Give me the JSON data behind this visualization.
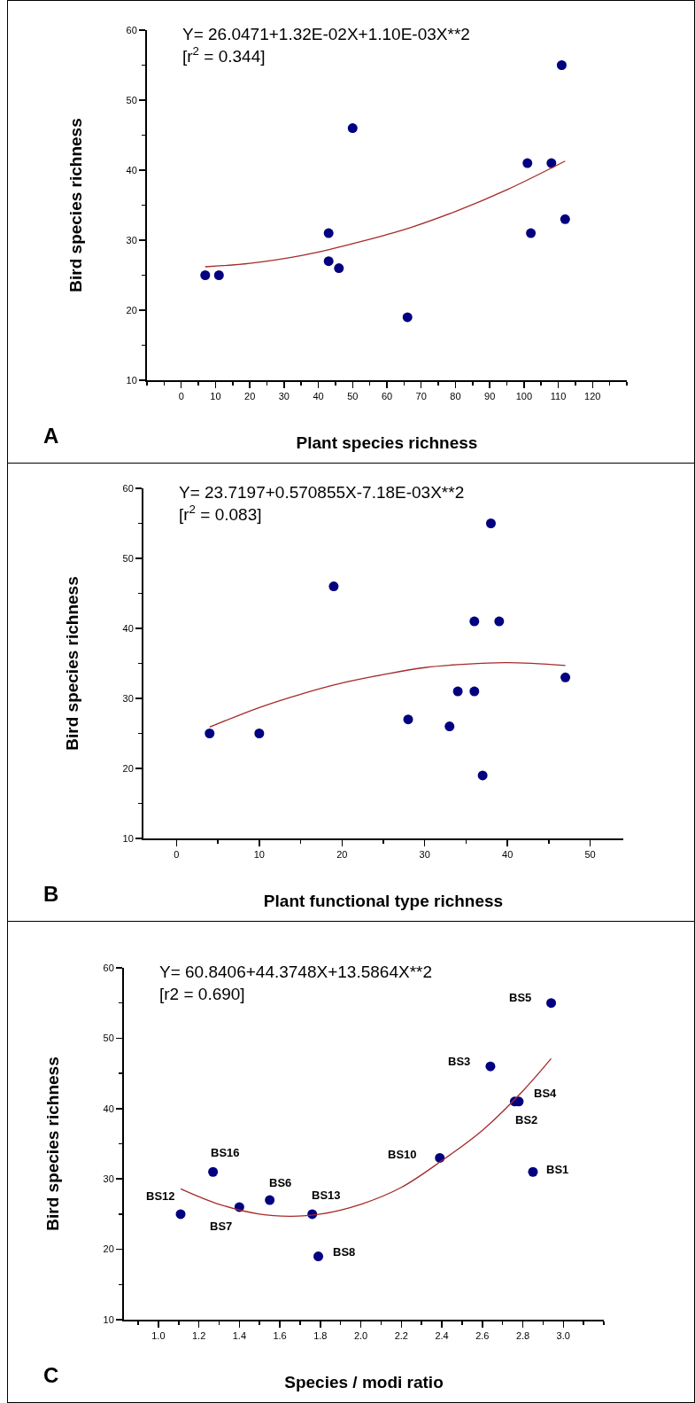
{
  "chart_data": [
    {
      "type": "scatter",
      "title": "A",
      "xlabel": "Plant species richness",
      "ylabel": "Bird species richness",
      "xlim": [
        -10,
        130
      ],
      "xticks": [
        0,
        10,
        20,
        30,
        40,
        50,
        60,
        70,
        80,
        90,
        100,
        110,
        120
      ],
      "ylim": [
        10,
        60
      ],
      "yticks": [
        10,
        20,
        30,
        40,
        50,
        60
      ],
      "annotations": [
        "Y= 26.0471+1.32E-02X+1.10E-03X**2\n[r$^{2}$ = 0.344]"
      ],
      "series": [
        {
          "marker": "circle",
          "color": "#000080",
          "x": [
            7,
            11,
            43,
            43,
            46,
            50,
            66,
            101,
            108,
            102,
            111,
            112
          ],
          "values": [
            25,
            25,
            31,
            27,
            26,
            46,
            19,
            41,
            41,
            31,
            55,
            33
          ]
        },
        {
          "type": "line",
          "marker": "none",
          "color": "#a52a2a",
          "x": [
            7,
            20,
            35,
            50,
            65,
            80,
            95,
            112
          ],
          "values": [
            26.2,
            26.7,
            27.8,
            29.5,
            31.5,
            34.1,
            37.2,
            41.3
          ]
        }
      ]
    },
    {
      "type": "scatter",
      "title": "B",
      "xlabel": "Plant functional type richness",
      "ylabel": "Bird species richness",
      "xlim": [
        -4,
        54
      ],
      "xticks": [
        0,
        10,
        20,
        30,
        40,
        50
      ],
      "ylim": [
        10,
        60
      ],
      "yticks": [
        10,
        20,
        30,
        40,
        50,
        60
      ],
      "annotations": [
        "Y= 23.7197+0.570855X-7.18E-03X**2\n[r$^{2}$ = 0.083]"
      ],
      "series": [
        {
          "marker": "circle",
          "color": "#000080",
          "x": [
            4,
            10,
            19,
            28,
            33,
            34,
            36,
            36,
            38,
            39,
            37,
            47
          ],
          "values": [
            25,
            25,
            46,
            27,
            26,
            31,
            31,
            41,
            55,
            41,
            19,
            33
          ]
        },
        {
          "type": "line",
          "marker": "none",
          "color": "#a52a2a",
          "x": [
            4,
            10,
            15,
            20,
            25,
            30,
            35,
            40,
            47
          ],
          "values": [
            25.9,
            28.7,
            30.6,
            32.2,
            33.4,
            34.4,
            34.9,
            35.1,
            34.7
          ]
        }
      ]
    },
    {
      "type": "scatter",
      "title": "C",
      "xlabel": "Species / modi ratio",
      "ylabel": "Bird species richness",
      "xlim": [
        0.83,
        3.2
      ],
      "xticks": [
        {
          "value": 1,
          "label": "1.0"
        },
        1.2,
        1.4,
        1.6,
        1.8,
        {
          "value": 2,
          "label": "2.0"
        },
        2.2,
        2.4,
        2.6,
        2.8,
        {
          "value": 3,
          "label": "3.0"
        }
      ],
      "ylim": [
        10,
        60
      ],
      "yticks": [
        10,
        20,
        30,
        40,
        50,
        60
      ],
      "annotations": [
        "Y= 60.8406+44.3748X+13.5864X**2\n[r2 = 0.690]",
        {
          "text": "BS12",
          "x": 1.11,
          "y": 25
        },
        {
          "text": "BS16",
          "x": 1.27,
          "y": 31
        },
        {
          "text": "BS7",
          "x": 1.4,
          "y": 26
        },
        {
          "text": "BS6",
          "x": 1.55,
          "y": 27
        },
        {
          "text": "BS13",
          "x": 1.76,
          "y": 25
        },
        {
          "text": "BS8",
          "x": 1.79,
          "y": 19
        },
        {
          "text": "BS10",
          "x": 2.39,
          "y": 33
        },
        {
          "text": "BS3",
          "x": 2.64,
          "y": 46
        },
        {
          "text": "BS2",
          "x": 2.76,
          "y": 41
        },
        {
          "text": "BS4",
          "x": 2.78,
          "y": 41
        },
        {
          "text": "BS1",
          "x": 2.85,
          "y": 31
        },
        {
          "text": "BS5",
          "x": 2.94,
          "y": 55
        }
      ],
      "series": [
        {
          "marker": "circle",
          "color": "#000080",
          "x": [
            1.11,
            1.27,
            1.4,
            1.55,
            1.76,
            1.79,
            2.39,
            2.64,
            2.76,
            2.78,
            2.85,
            2.94
          ],
          "values": [
            25,
            31,
            26,
            27,
            25,
            19,
            33,
            46,
            41,
            41,
            31,
            55
          ]
        },
        {
          "type": "line",
          "marker": "none",
          "color": "#a52a2a",
          "x": [
            1.11,
            1.3,
            1.5,
            1.65,
            1.8,
            2.0,
            2.2,
            2.4,
            2.6,
            2.8,
            2.94
          ],
          "values": [
            28.6,
            26.4,
            25.0,
            24.7,
            25.0,
            26.4,
            28.8,
            32.6,
            36.9,
            42.5,
            47.1
          ]
        }
      ]
    }
  ]
}
